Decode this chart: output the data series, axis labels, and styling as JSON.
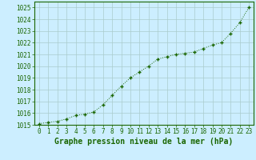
{
  "x": [
    0,
    1,
    2,
    3,
    4,
    5,
    6,
    7,
    8,
    9,
    10,
    11,
    12,
    13,
    14,
    15,
    16,
    17,
    18,
    19,
    20,
    21,
    22,
    23
  ],
  "y": [
    1015.1,
    1015.2,
    1015.3,
    1015.5,
    1015.8,
    1015.9,
    1016.1,
    1016.7,
    1017.5,
    1018.3,
    1019.0,
    1019.5,
    1020.0,
    1020.6,
    1020.8,
    1021.0,
    1021.1,
    1021.2,
    1021.5,
    1021.8,
    1022.0,
    1022.8,
    1023.7,
    1025.0
  ],
  "line_color": "#1a6600",
  "marker": "+",
  "marker_color": "#1a6600",
  "bg_color": "#cceeff",
  "grid_color": "#aacccc",
  "xlabel": "Graphe pression niveau de la mer (hPa)",
  "ylim": [
    1015,
    1025.5
  ],
  "xlim": [
    -0.5,
    23.5
  ],
  "yticks": [
    1015,
    1016,
    1017,
    1018,
    1019,
    1020,
    1021,
    1022,
    1023,
    1024,
    1025
  ],
  "xticks": [
    0,
    1,
    2,
    3,
    4,
    5,
    6,
    7,
    8,
    9,
    10,
    11,
    12,
    13,
    14,
    15,
    16,
    17,
    18,
    19,
    20,
    21,
    22,
    23
  ],
  "tick_fontsize": 5.5,
  "xlabel_fontsize": 7,
  "outer_bg": "#cceeff"
}
